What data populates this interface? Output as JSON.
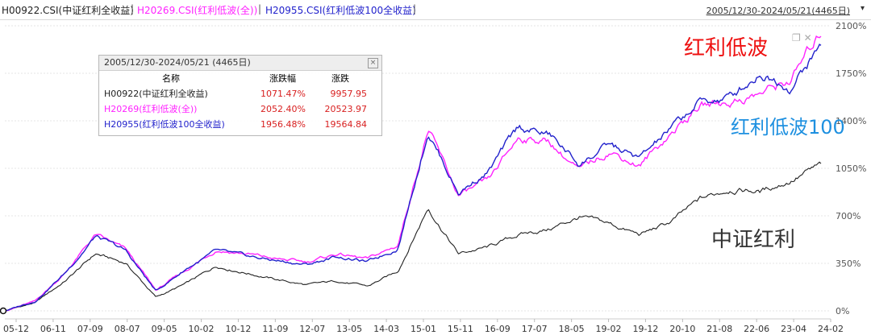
{
  "legend": [
    {
      "label": "H00922.CSI(中证红利全收益)",
      "color": "#222222"
    },
    {
      "label": "H20269.CSI(红利低波(全))",
      "color": "#ff22ff"
    },
    {
      "label": "H20955.CSI(红利低波100全收益)",
      "color": "#2222cc"
    }
  ],
  "separator": "|",
  "range": "2005/12/30-2024/05/21(4465日)",
  "stats": {
    "title": "2005/12/30-2024/05/21 (4465日)",
    "headers": {
      "name": "名称",
      "pct": "涨跌幅",
      "chg": "涨跌"
    },
    "rows": [
      {
        "name": "H00922(中证红利全收益)",
        "pct": "1071.47%",
        "chg": "9957.95",
        "color": "#222222"
      },
      {
        "name": "H20269(红利低波(全))",
        "pct": "2052.40%",
        "chg": "20523.97",
        "color": "#ff22ff"
      },
      {
        "name": "H20955(红利低波100全收益)",
        "pct": "1956.48%",
        "chg": "19564.84",
        "color": "#2222cc"
      }
    ]
  },
  "annotations": [
    {
      "text": "红利低波",
      "color": "#ee1111"
    },
    {
      "text": "红利低波100",
      "color": "#1e90e0"
    },
    {
      "text": "中证红利",
      "color": "#333333"
    }
  ],
  "chart_data": {
    "type": "line",
    "title": "",
    "xlabel": "",
    "ylabel": "",
    "ylim": [
      0,
      2100
    ],
    "y_ticks": [
      "0%",
      "350%",
      "700%",
      "1050%",
      "1400%",
      "1750%",
      "2100%"
    ],
    "x_ticks": [
      "05-12",
      "06-11",
      "07-09",
      "08-07",
      "09-05",
      "10-02",
      "10-12",
      "11-09",
      "12-07",
      "13-05",
      "14-03",
      "15-01",
      "15-11",
      "16-09",
      "17-07",
      "18-05",
      "19-02",
      "19-12",
      "20-10",
      "21-08",
      "22-06",
      "23-04",
      "24-02"
    ],
    "grid": "horizontal",
    "series": [
      {
        "name": "H00922.CSI(中证红利全收益)",
        "color": "#222222",
        "values": [
          0,
          60,
          220,
          420,
          350,
          100,
          200,
          330,
          280,
          230,
          190,
          220,
          180,
          290,
          760,
          420,
          470,
          560,
          600,
          690,
          640,
          560,
          650,
          820,
          900,
          880,
          960,
          1071
        ]
      },
      {
        "name": "H20269.CSI(红利低波(全))",
        "color": "#ff22ff",
        "values": [
          0,
          70,
          280,
          560,
          450,
          150,
          300,
          450,
          420,
          380,
          360,
          420,
          380,
          480,
          1340,
          850,
          950,
          1280,
          1250,
          1030,
          1180,
          1070,
          1300,
          1510,
          1540,
          1600,
          1700,
          2052
        ]
      },
      {
        "name": "H20955.CSI(红利低波100全收益)",
        "color": "#2222cc",
        "values": [
          0,
          70,
          280,
          550,
          440,
          145,
          310,
          440,
          400,
          370,
          340,
          400,
          360,
          460,
          1330,
          870,
          1030,
          1350,
          1300,
          1080,
          1220,
          1120,
          1330,
          1540,
          1570,
          1760,
          1650,
          1956
        ]
      }
    ]
  }
}
